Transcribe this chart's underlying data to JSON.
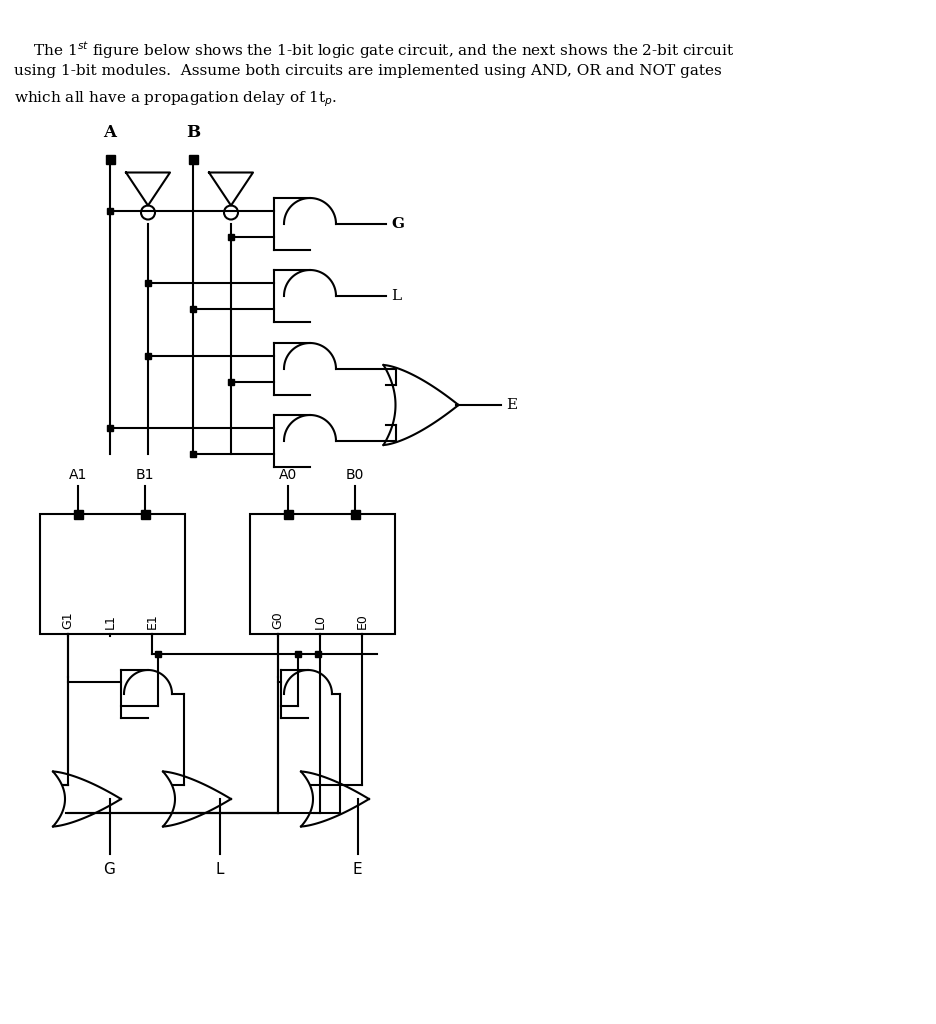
{
  "bg_color": "#ffffff",
  "line_color": "#000000",
  "fig_width": 9.36,
  "fig_height": 10.24,
  "title_lines": [
    "    The 1$^{st}$ figure below shows the 1-bit logic gate circuit, and the next shows the 2-bit circuit",
    "using 1-bit modules.  Assume both circuits are implemented using AND, OR and NOT gates",
    "which all have a propagation delay of 1t$_p$."
  ]
}
